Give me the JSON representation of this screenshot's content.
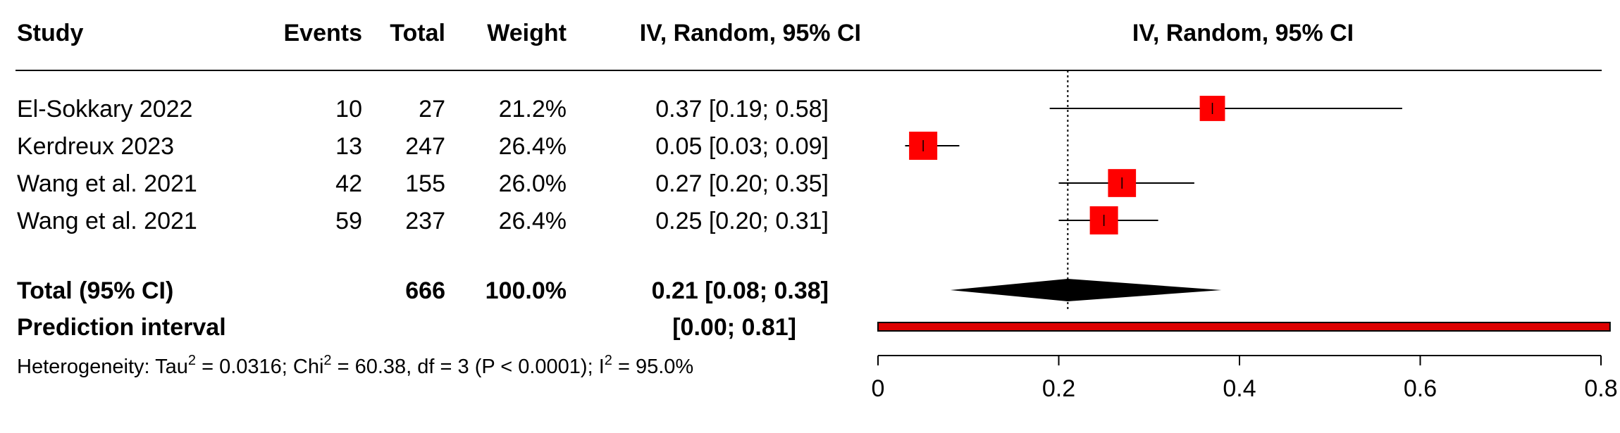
{
  "chart_data": {
    "type": "forest",
    "columns": {
      "study": "Study",
      "events": "Events",
      "total": "Total",
      "weight": "Weight",
      "ci": "IV, Random, 95% CI",
      "plot": "IV, Random, 95% CI"
    },
    "studies": [
      {
        "name": "El-Sokkary 2022",
        "events": "10",
        "total": "27",
        "weight": "21.2%",
        "ci_text": "0.37 [0.19; 0.58]",
        "est": 0.37,
        "lower": 0.19,
        "upper": 0.58,
        "weight_value": 21.2
      },
      {
        "name": "Kerdreux 2023",
        "events": "13",
        "total": "247",
        "weight": "26.4%",
        "ci_text": "0.05 [0.03; 0.09]",
        "est": 0.05,
        "lower": 0.03,
        "upper": 0.09,
        "weight_value": 26.4
      },
      {
        "name": "Wang et al. 2021",
        "events": "42",
        "total": "155",
        "weight": "26.0%",
        "ci_text": "0.27 [0.20; 0.35]",
        "est": 0.27,
        "lower": 0.2,
        "upper": 0.35,
        "weight_value": 26.0
      },
      {
        "name": "Wang et al. 2021",
        "events": "59",
        "total": "237",
        "weight": "26.4%",
        "ci_text": "0.25 [0.20; 0.31]",
        "est": 0.25,
        "lower": 0.2,
        "upper": 0.31,
        "weight_value": 26.4
      }
    ],
    "total": {
      "label": "Total (95% CI)",
      "total": "666",
      "weight": "100.0%",
      "ci_text": "0.21 [0.08; 0.38]",
      "est": 0.21,
      "lower": 0.08,
      "upper": 0.38
    },
    "prediction": {
      "label": "Prediction interval",
      "ci_text": "[0.00; 0.81]",
      "lower": 0.0,
      "upper": 0.81
    },
    "heterogeneity": {
      "prefix": "Heterogeneity: Tau",
      "tau_sup": "2",
      "tau_value": " = 0.0316; Chi",
      "chi_sup": "2",
      "chi_value": " = 60.38, df = 3 (P < 0.0001); I",
      "i_sup": "2",
      "i_value": " = 95.0%"
    },
    "x_ticks": [
      0,
      0.2,
      0.4,
      0.6,
      0.8
    ],
    "x_tick_labels": [
      "0",
      "0.2",
      "0.4",
      "0.6",
      "0.8"
    ],
    "xlim": [
      0,
      0.82
    ],
    "reference_line": 0.21,
    "colors": {
      "box": "#ff0000",
      "diamond": "#000000",
      "prediction_fill": "#dd0000",
      "text": "#000000"
    }
  }
}
